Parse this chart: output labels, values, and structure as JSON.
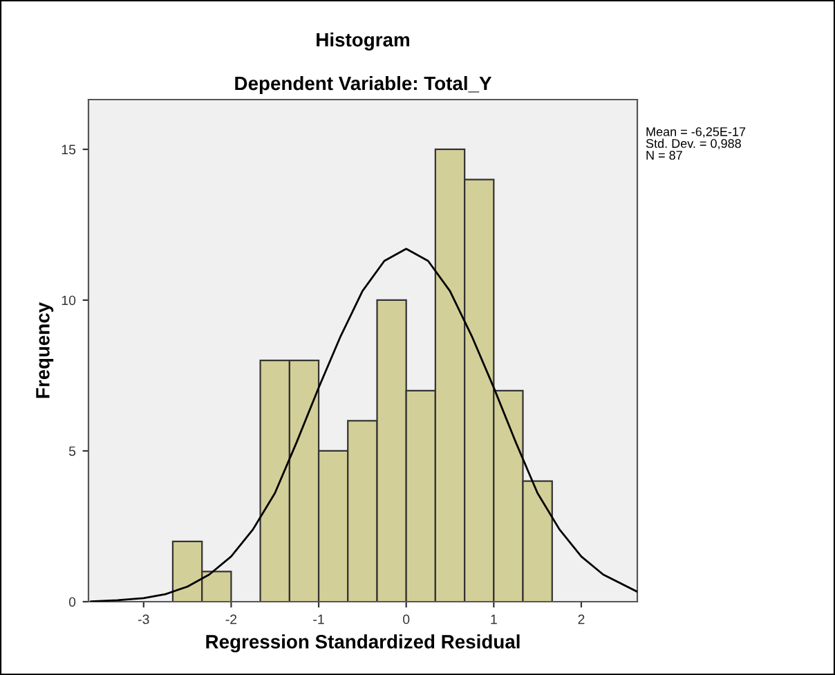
{
  "chart_data": {
    "type": "histogram",
    "title": "Histogram",
    "subtitle": "Dependent Variable: Total_Y",
    "xlabel": "Regression Standardized Residual",
    "ylabel": "Frequency",
    "annotations": [
      "Mean = -6,25E-17",
      "Std. Dev. = 0,988",
      "N = 87"
    ],
    "series": [
      {
        "color": "#d3cf98",
        "bins": [
          -2.667,
          -2.333,
          -2.0,
          -1.667,
          -1.333,
          -1.0,
          -0.667,
          -0.333,
          0.0,
          0.333,
          0.667,
          1.0,
          1.333,
          1.667
        ],
        "values": [
          2,
          1,
          0,
          8,
          8,
          5,
          6,
          10,
          7,
          15,
          14,
          7,
          4
        ]
      },
      {
        "type": "line",
        "color": "#000000",
        "x": [
          -3.6,
          -3.3,
          -3.0,
          -2.75,
          -2.5,
          -2.25,
          -2.0,
          -1.75,
          -1.5,
          -1.25,
          -1.0,
          -0.75,
          -0.5,
          -0.25,
          0.0,
          0.25,
          0.5,
          0.75,
          1.0,
          1.25,
          1.5,
          1.75,
          2.0,
          2.25,
          2.64
        ],
        "values": [
          0.01,
          0.05,
          0.12,
          0.25,
          0.5,
          0.9,
          1.5,
          2.4,
          3.6,
          5.3,
          7.1,
          8.8,
          10.3,
          11.3,
          11.7,
          11.3,
          10.3,
          8.8,
          7.1,
          5.3,
          3.6,
          2.4,
          1.5,
          0.9,
          0.33
        ]
      }
    ],
    "xlim": [
      -3.63,
      2.64
    ],
    "ylim": [
      0,
      16.65
    ],
    "xticks": [
      -3,
      -2,
      -1,
      0,
      1,
      2
    ],
    "yticks": [
      0,
      5,
      10,
      15
    ],
    "grid": false,
    "legend": false
  }
}
